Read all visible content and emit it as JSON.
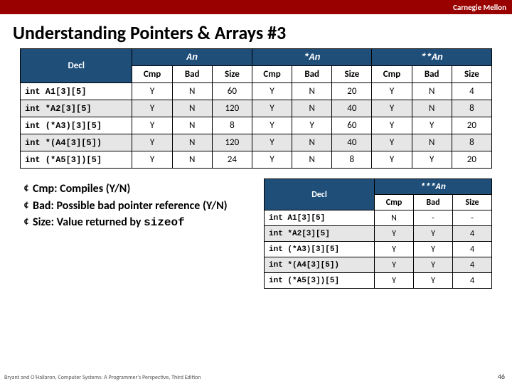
{
  "brand": "Carnegie Mellon",
  "title": "Understanding Pointers & Arrays #3",
  "main": {
    "decl_header": "Decl",
    "groups": [
      "An",
      "*An",
      "**An"
    ],
    "sub": [
      "Cmp",
      "Bad",
      "Size"
    ],
    "rows": [
      {
        "decl": "int A1[3][5]",
        "v": [
          "Y",
          "N",
          "60",
          "Y",
          "N",
          "20",
          "Y",
          "N",
          "4"
        ]
      },
      {
        "decl": "int *A2[3][5]",
        "v": [
          "Y",
          "N",
          "120",
          "Y",
          "N",
          "40",
          "Y",
          "N",
          "8"
        ]
      },
      {
        "decl": "int (*A3)[3][5]",
        "v": [
          "Y",
          "N",
          "8",
          "Y",
          "Y",
          "60",
          "Y",
          "Y",
          "20"
        ]
      },
      {
        "decl": "int *(A4[3][5])",
        "v": [
          "Y",
          "N",
          "120",
          "Y",
          "N",
          "40",
          "Y",
          "N",
          "8"
        ]
      },
      {
        "decl": "int (*A5[3])[5]",
        "v": [
          "Y",
          "N",
          "24",
          "Y",
          "N",
          "8",
          "Y",
          "Y",
          "20"
        ]
      }
    ]
  },
  "legend": {
    "cmp": "Cmp: Compiles (Y/N)",
    "bad": "Bad: Possible bad pointer reference (Y/N)",
    "size_pre": "Size: Value returned by ",
    "size_code": "sizeof"
  },
  "small": {
    "decl_header": "Decl",
    "group": "***An",
    "sub": [
      "Cmp",
      "Bad",
      "Size"
    ],
    "rows": [
      {
        "decl": "int A1[3][5]",
        "v": [
          "N",
          "-",
          "-"
        ]
      },
      {
        "decl": "int *A2[3][5]",
        "v": [
          "Y",
          "Y",
          "4"
        ]
      },
      {
        "decl": "int (*A3)[3][5]",
        "v": [
          "Y",
          "Y",
          "4"
        ]
      },
      {
        "decl": "int *(A4[3][5])",
        "v": [
          "Y",
          "Y",
          "4"
        ]
      },
      {
        "decl": "int (*A5[3])[5]",
        "v": [
          "Y",
          "Y",
          "4"
        ]
      }
    ]
  },
  "footer": "Bryant and O'Hallaron, Computer Systems: A Programmer's Perspective, Third Edition",
  "pageno": "46"
}
